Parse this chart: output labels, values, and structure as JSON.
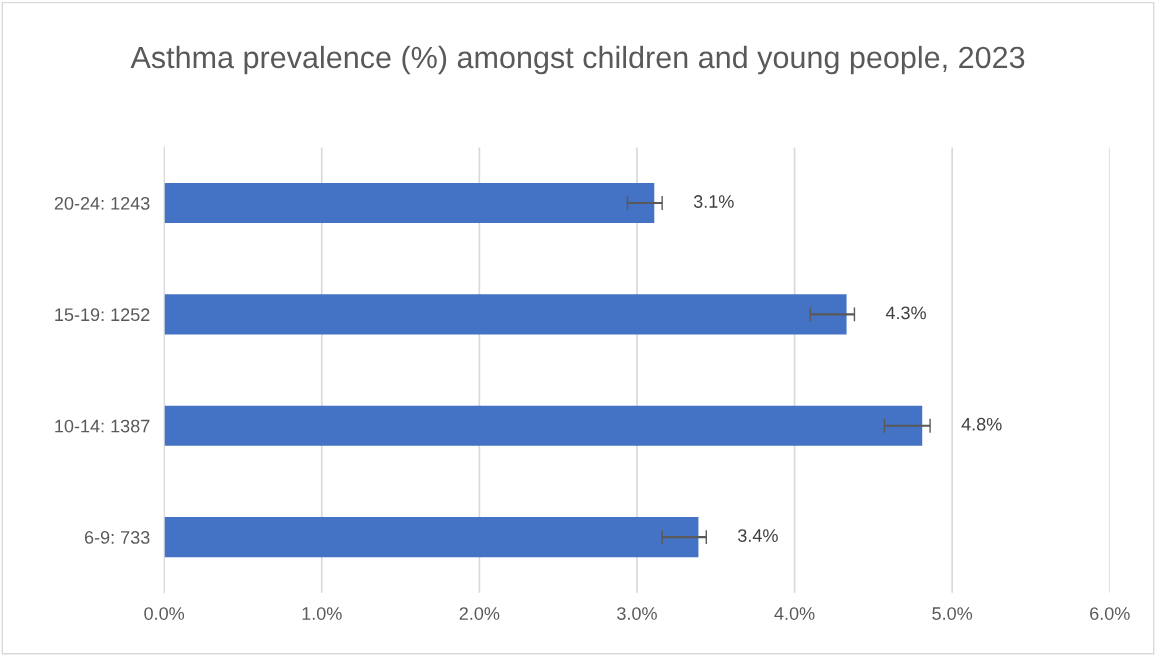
{
  "chart_data": {
    "type": "bar",
    "orientation": "horizontal",
    "title": "Asthma prevalence (%) amongst children and young people, 2023",
    "categories": [
      "20-24: 1243",
      "15-19: 1252",
      "10-14: 1387",
      "6-9: 733"
    ],
    "values": [
      3.11,
      4.33,
      4.81,
      3.39
    ],
    "errors": [
      [
        2.94,
        3.16
      ],
      [
        4.1,
        4.38
      ],
      [
        4.57,
        4.86
      ],
      [
        3.16,
        3.44
      ]
    ],
    "value_labels": [
      "3.1%",
      "4.3%",
      "4.8%",
      "3.4%"
    ],
    "color": "#4472c4",
    "xlim": [
      0,
      6
    ],
    "xticks": [
      {
        "value": 0,
        "label": "0.0%"
      },
      {
        "value": 1,
        "label": "1.0%"
      },
      {
        "value": 2,
        "label": "2.0%"
      },
      {
        "value": 3,
        "label": "3.0%"
      },
      {
        "value": 4,
        "label": "4.0%"
      },
      {
        "value": 5,
        "label": "5.0%"
      },
      {
        "value": 6,
        "label": "6.0%"
      }
    ],
    "grid": "x",
    "legend": false
  }
}
